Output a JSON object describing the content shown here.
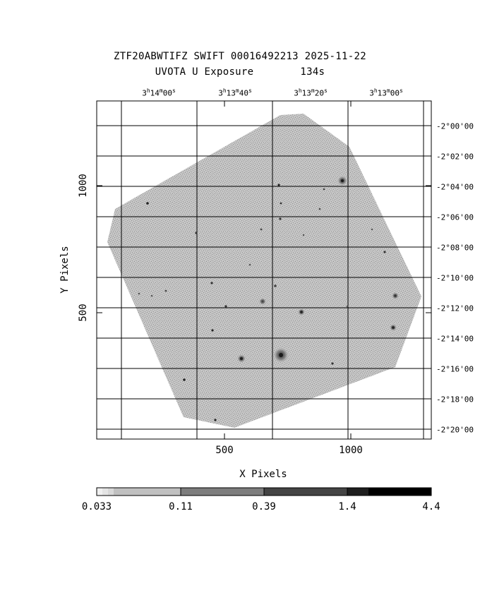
{
  "title": {
    "line1": "ZTF20ABWTIFZ SWIFT 00016492213 2025-11-22",
    "line2_filter": "UVOTA U Exposure",
    "line2_exposure": "134s"
  },
  "ra_ticks": [
    {
      "h": "3",
      "m": "14",
      "s": "00"
    },
    {
      "h": "3",
      "m": "13",
      "s": "40"
    },
    {
      "h": "3",
      "m": "13",
      "s": "20"
    },
    {
      "h": "3",
      "m": "13",
      "s": "00"
    }
  ],
  "dec_ticks": [
    "-2°00'00",
    "-2°02'00",
    "-2°04'00",
    "-2°06'00",
    "-2°08'00",
    "-2°10'00",
    "-2°12'00",
    "-2°14'00",
    "-2°16'00",
    "-2°18'00",
    "-2°20'00"
  ],
  "x_axis": {
    "label": "X Pixels",
    "ticks": [
      "500",
      "1000"
    ]
  },
  "y_axis": {
    "label": "Y Pixels",
    "ticks": [
      "1000",
      "500"
    ]
  },
  "colorbar": {
    "labels": [
      "0.033",
      "0.11",
      "0.39",
      "1.4",
      "4.4"
    ]
  },
  "colors": {
    "frame": "#000000",
    "field": "#b4b4b4",
    "background": "#ffffff"
  }
}
